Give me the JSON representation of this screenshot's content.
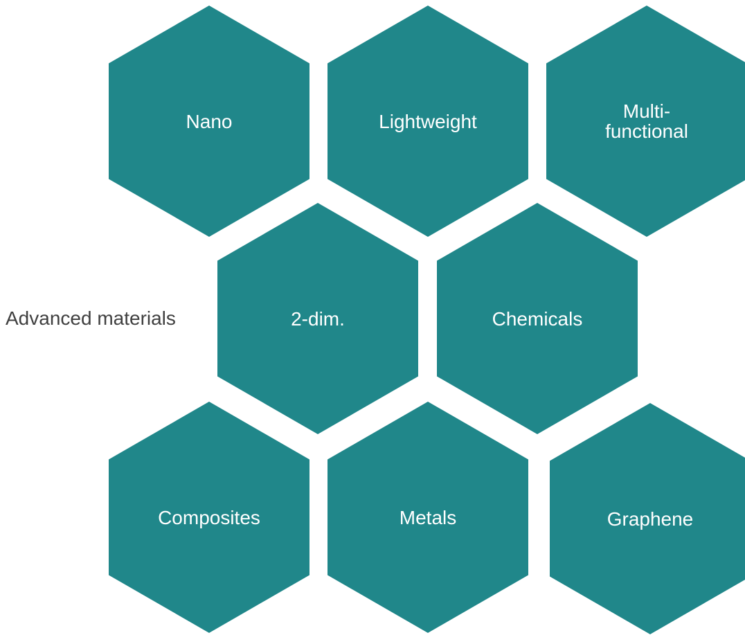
{
  "diagram": {
    "label": "Advanced materials",
    "hexagon_color": "#20878a",
    "hexagons": [
      {
        "label": "Nano"
      },
      {
        "label": "Lightweight"
      },
      {
        "label": "Multi-\nfunctional"
      },
      {
        "label": "2-dim."
      },
      {
        "label": "Chemicals"
      },
      {
        "label": "Composites"
      },
      {
        "label": "Metals"
      },
      {
        "label": "Graphene"
      }
    ]
  }
}
